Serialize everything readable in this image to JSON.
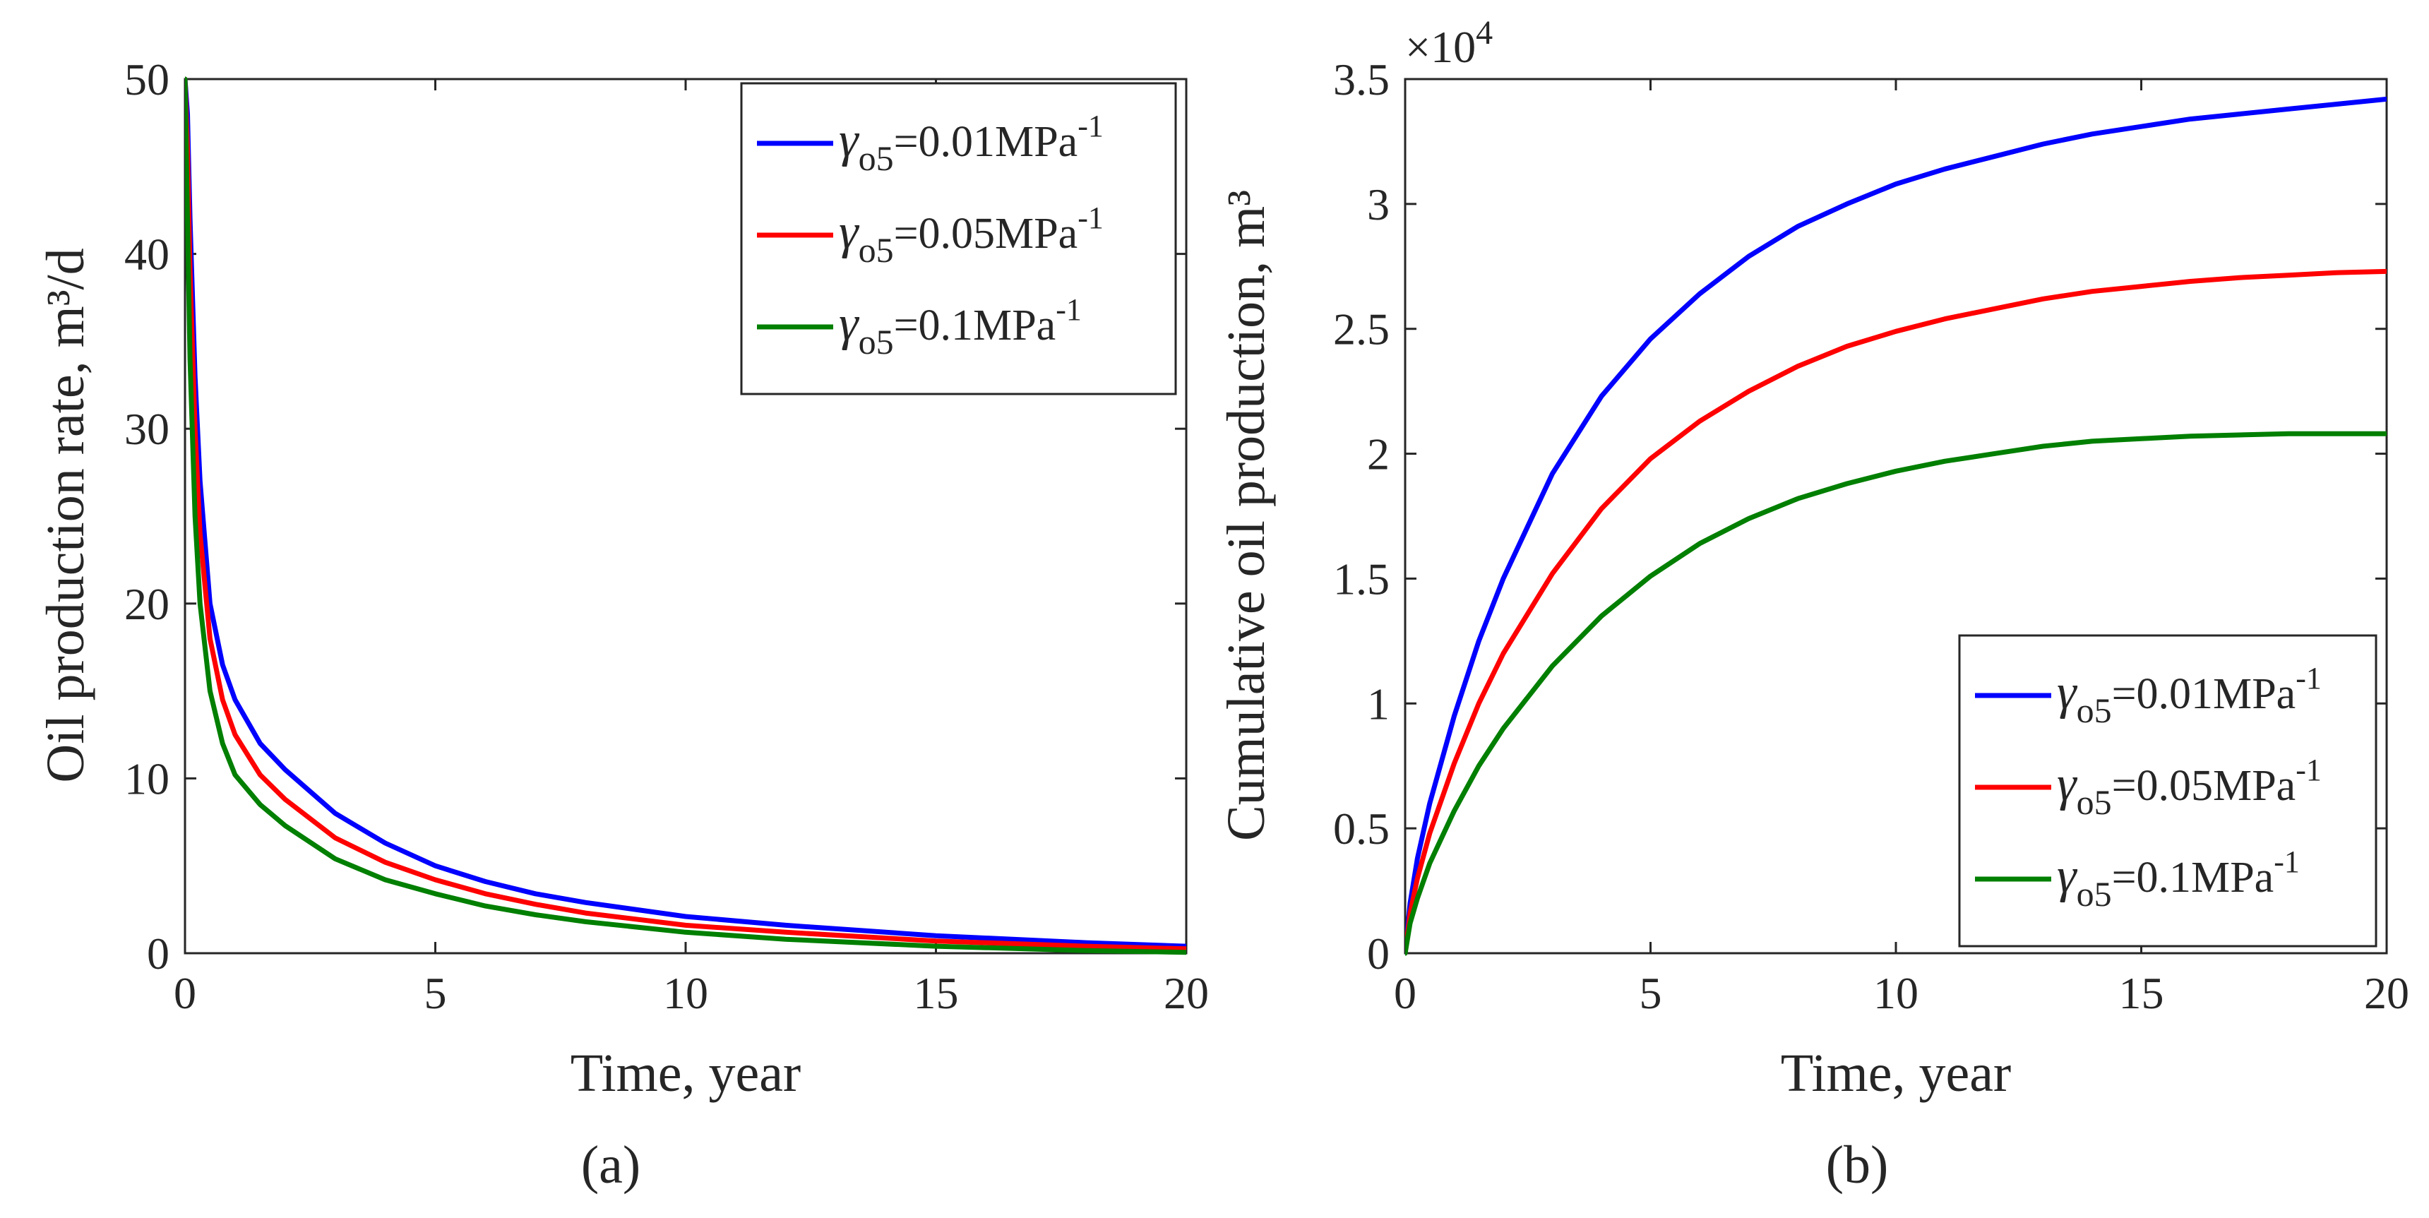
{
  "chart_data": [
    {
      "type": "line",
      "panel_label": "(a)",
      "xlabel": "Time, year",
      "ylabel": "Oil production rate, m³/d",
      "xlim": [
        0,
        20
      ],
      "ylim": [
        0,
        50
      ],
      "xticks": [
        0,
        5,
        10,
        15,
        20
      ],
      "yticks": [
        0,
        10,
        20,
        30,
        40,
        50
      ],
      "grid": false,
      "legend_position": "top-right",
      "series": [
        {
          "name": "γo5=0.01MPa-1",
          "legend_symbol": "γ",
          "legend_sub": "o5",
          "legend_value": "=0.01MPa",
          "legend_sup": "-1",
          "color": "#0000ff",
          "x": [
            0,
            0.05,
            0.1,
            0.2,
            0.3,
            0.5,
            0.75,
            1,
            1.5,
            2,
            3,
            4,
            5,
            6,
            7,
            8,
            10,
            12,
            15,
            18,
            20
          ],
          "y": [
            50,
            48,
            42,
            33,
            27,
            20,
            16.5,
            14.5,
            12,
            10.5,
            8,
            6.3,
            5,
            4.1,
            3.4,
            2.9,
            2.1,
            1.6,
            1.0,
            0.6,
            0.4
          ]
        },
        {
          "name": "γo5=0.05MPa-1",
          "legend_symbol": "γ",
          "legend_sub": "o5",
          "legend_value": "=0.05MPa",
          "legend_sup": "-1",
          "color": "#ff0000",
          "x": [
            0,
            0.05,
            0.1,
            0.2,
            0.3,
            0.5,
            0.75,
            1,
            1.5,
            2,
            3,
            4,
            5,
            6,
            7,
            8,
            10,
            12,
            15,
            18,
            20
          ],
          "y": [
            50,
            46,
            39,
            30,
            24,
            18,
            14.5,
            12.5,
            10.2,
            8.8,
            6.6,
            5.2,
            4.2,
            3.4,
            2.8,
            2.3,
            1.6,
            1.2,
            0.7,
            0.4,
            0.25
          ]
        },
        {
          "name": "γo5=0.1MPa-1",
          "legend_symbol": "γ",
          "legend_sub": "o5",
          "legend_value": "=0.1MPa",
          "legend_sup": "-1",
          "color": "#007f00",
          "x": [
            0,
            0.05,
            0.1,
            0.2,
            0.3,
            0.5,
            0.75,
            1,
            1.5,
            2,
            3,
            4,
            5,
            6,
            7,
            8,
            10,
            12,
            15,
            18,
            20
          ],
          "y": [
            50,
            42,
            34,
            25,
            20,
            15,
            12,
            10.2,
            8.5,
            7.3,
            5.4,
            4.2,
            3.4,
            2.7,
            2.2,
            1.8,
            1.2,
            0.8,
            0.4,
            0.15,
            0.05
          ]
        }
      ]
    },
    {
      "type": "line",
      "panel_label": "(b)",
      "xlabel": "Time, year",
      "ylabel": "Cumulative oil production, m³",
      "scale_factor": "×10",
      "scale_exponent": "4",
      "xlim": [
        0,
        20
      ],
      "ylim": [
        0,
        3.5
      ],
      "xticks": [
        0,
        5,
        10,
        15,
        20
      ],
      "yticks": [
        0,
        0.5,
        1,
        1.5,
        2,
        2.5,
        3,
        3.5
      ],
      "ytick_labels": [
        "0",
        "0.5",
        "1",
        "1.5",
        "2",
        "2.5",
        "3",
        "3.5"
      ],
      "grid": false,
      "legend_position": "bottom-right",
      "series": [
        {
          "name": "γo5=0.01MPa-1",
          "legend_symbol": "γ",
          "legend_sub": "o5",
          "legend_value": "=0.01MPa",
          "legend_sup": "-1",
          "color": "#0000ff",
          "x": [
            0,
            0.1,
            0.25,
            0.5,
            1,
            1.5,
            2,
            3,
            4,
            5,
            6,
            7,
            8,
            9,
            10,
            11,
            12,
            13,
            14,
            15,
            16,
            17,
            18,
            19,
            20
          ],
          "y": [
            0,
            0.2,
            0.38,
            0.6,
            0.95,
            1.25,
            1.5,
            1.92,
            2.23,
            2.46,
            2.64,
            2.79,
            2.91,
            3.0,
            3.08,
            3.14,
            3.19,
            3.24,
            3.28,
            3.31,
            3.34,
            3.36,
            3.38,
            3.4,
            3.42
          ]
        },
        {
          "name": "γo5=0.05MPa-1",
          "legend_symbol": "γ",
          "legend_sub": "o5",
          "legend_value": "=0.05MPa",
          "legend_sup": "-1",
          "color": "#ff0000",
          "x": [
            0,
            0.1,
            0.25,
            0.5,
            1,
            1.5,
            2,
            3,
            4,
            5,
            6,
            7,
            8,
            9,
            10,
            11,
            12,
            13,
            14,
            15,
            16,
            17,
            18,
            19,
            20
          ],
          "y": [
            0,
            0.16,
            0.3,
            0.48,
            0.76,
            1.0,
            1.2,
            1.52,
            1.78,
            1.98,
            2.13,
            2.25,
            2.35,
            2.43,
            2.49,
            2.54,
            2.58,
            2.62,
            2.65,
            2.67,
            2.69,
            2.705,
            2.715,
            2.725,
            2.73
          ]
        },
        {
          "name": "γo5=0.1MPa-1",
          "legend_symbol": "γ",
          "legend_sub": "o5",
          "legend_value": "=0.1MPa",
          "legend_sup": "-1",
          "color": "#007f00",
          "x": [
            0,
            0.1,
            0.25,
            0.5,
            1,
            1.5,
            2,
            3,
            4,
            5,
            6,
            7,
            8,
            9,
            10,
            11,
            12,
            13,
            14,
            15,
            16,
            17,
            18,
            19,
            20
          ],
          "y": [
            0,
            0.12,
            0.22,
            0.36,
            0.57,
            0.75,
            0.9,
            1.15,
            1.35,
            1.51,
            1.64,
            1.74,
            1.82,
            1.88,
            1.93,
            1.97,
            2.0,
            2.03,
            2.05,
            2.06,
            2.07,
            2.075,
            2.08,
            2.08,
            2.08
          ]
        }
      ]
    }
  ]
}
